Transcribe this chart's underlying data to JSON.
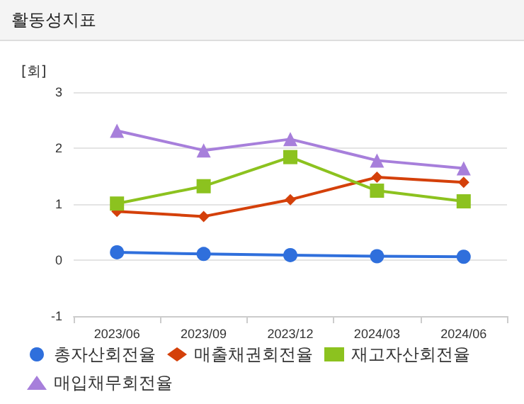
{
  "chart_data": {
    "type": "line",
    "title": "활동성지표",
    "ylabel": "[회]",
    "categories": [
      "2023/06",
      "2023/09",
      "2023/12",
      "2024/03",
      "2024/06"
    ],
    "series": [
      {
        "name": "총자산회전율",
        "color": "#2f6fdc",
        "marker": "circle",
        "values": [
          0.14,
          0.11,
          0.09,
          0.07,
          0.06
        ]
      },
      {
        "name": "매출채권회전율",
        "color": "#d4400a",
        "marker": "diamond",
        "values": [
          0.87,
          0.78,
          1.08,
          1.48,
          1.39
        ]
      },
      {
        "name": "재고자산회전율",
        "color": "#8cc21f",
        "marker": "square",
        "values": [
          1.01,
          1.32,
          1.84,
          1.24,
          1.05
        ]
      },
      {
        "name": "매입채무회전율",
        "color": "#a77fdb",
        "marker": "triangle",
        "values": [
          2.31,
          1.96,
          2.16,
          1.78,
          1.64
        ]
      }
    ],
    "ylim": [
      -1,
      3
    ],
    "yticks": [
      -1,
      0,
      1,
      2,
      3
    ],
    "grid": "y",
    "legend": "bottom"
  }
}
